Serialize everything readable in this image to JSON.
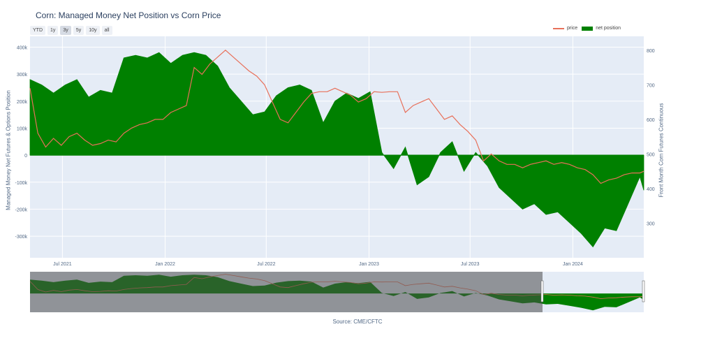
{
  "title": "Corn: Managed Money Net Position vs Corn Price",
  "range_buttons": [
    {
      "label": "YTD",
      "active": false
    },
    {
      "label": "1y",
      "active": false
    },
    {
      "label": "3y",
      "active": true
    },
    {
      "label": "5y",
      "active": false
    },
    {
      "label": "10y",
      "active": false
    },
    {
      "label": "all",
      "active": false
    }
  ],
  "legend": {
    "price": "price",
    "net_position": "net position"
  },
  "source": "Source: CME/CFTC",
  "colors": {
    "price": "#e8705a",
    "net_position": "#008000",
    "plot_bg": "#e5ecf6",
    "grid": "#ffffff"
  },
  "chart_data": {
    "type": "area",
    "title": "Corn: Managed Money Net Position vs Corn Price",
    "ylabel": "Managed Money Net Futures & Options Position",
    "y2label": "Front Month Corn Futures Continuous",
    "xlim": [
      "2021-05-04",
      "2024-05-07"
    ],
    "ylim": [
      -380000,
      440000
    ],
    "y2lim": [
      200000,
      840000
    ],
    "x_tick_labels": [
      "Jul 2021",
      "Jan 2022",
      "Jul 2022",
      "Jan 2023",
      "Jul 2023",
      "Jan 2024"
    ],
    "x_tick_dates": [
      "2021-07-01",
      "2022-01-01",
      "2022-07-01",
      "2023-01-01",
      "2023-07-01",
      "2024-01-01"
    ],
    "y_tick_labels": [
      "-300k",
      "-200k",
      "-100k",
      "0",
      "100k",
      "200k",
      "300k",
      "400k"
    ],
    "y_tick_values": [
      -300000,
      -200000,
      -100000,
      0,
      100000,
      200000,
      300000,
      400000
    ],
    "y2_tick_labels": [
      "300",
      "400",
      "500",
      "600",
      "700",
      "800"
    ],
    "y2_tick_values": [
      300,
      400,
      500,
      600,
      700,
      800
    ],
    "legend_position": "top-right",
    "grid": true,
    "series": [
      {
        "name": "net position",
        "axis": "left",
        "style": "filled-area",
        "x": [
          "2021-05-04",
          "2021-05-25",
          "2021-06-15",
          "2021-07-06",
          "2021-07-27",
          "2021-08-17",
          "2021-09-07",
          "2021-09-28",
          "2021-10-19",
          "2021-11-09",
          "2021-11-30",
          "2021-12-21",
          "2022-01-11",
          "2022-02-01",
          "2022-02-22",
          "2022-03-15",
          "2022-04-05",
          "2022-04-26",
          "2022-05-17",
          "2022-06-07",
          "2022-06-28",
          "2022-07-19",
          "2022-08-09",
          "2022-08-30",
          "2022-09-20",
          "2022-10-11",
          "2022-11-01",
          "2022-11-22",
          "2022-12-13",
          "2023-01-03",
          "2023-01-24",
          "2023-02-14",
          "2023-03-07",
          "2023-03-28",
          "2023-04-18",
          "2023-05-09",
          "2023-05-30",
          "2023-06-20",
          "2023-07-11",
          "2023-08-01",
          "2023-08-22",
          "2023-09-12",
          "2023-10-03",
          "2023-10-24",
          "2023-11-14",
          "2023-12-05",
          "2023-12-26",
          "2024-01-16",
          "2024-02-06",
          "2024-02-27",
          "2024-03-19",
          "2024-04-09",
          "2024-04-30",
          "2024-05-07"
        ],
        "y": [
          280000,
          260000,
          230000,
          260000,
          280000,
          215000,
          240000,
          230000,
          360000,
          370000,
          360000,
          380000,
          340000,
          370000,
          380000,
          370000,
          330000,
          250000,
          200000,
          150000,
          160000,
          220000,
          250000,
          260000,
          240000,
          120000,
          200000,
          230000,
          210000,
          235000,
          10000,
          -50000,
          30000,
          -110000,
          -80000,
          10000,
          50000,
          -60000,
          10000,
          -40000,
          -120000,
          -160000,
          -200000,
          -180000,
          -220000,
          -210000,
          -250000,
          -290000,
          -340000,
          -270000,
          -280000,
          -180000,
          -80000,
          -130000
        ]
      },
      {
        "name": "price",
        "axis": "right",
        "style": "line",
        "x": [
          "2021-05-04",
          "2021-05-18",
          "2021-06-01",
          "2021-06-15",
          "2021-06-29",
          "2021-07-13",
          "2021-07-27",
          "2021-08-10",
          "2021-08-24",
          "2021-09-07",
          "2021-09-21",
          "2021-10-05",
          "2021-10-19",
          "2021-11-02",
          "2021-11-16",
          "2021-11-30",
          "2021-12-14",
          "2021-12-28",
          "2022-01-11",
          "2022-01-25",
          "2022-02-08",
          "2022-02-22",
          "2022-03-08",
          "2022-03-22",
          "2022-04-05",
          "2022-04-19",
          "2022-05-03",
          "2022-05-17",
          "2022-05-31",
          "2022-06-14",
          "2022-06-28",
          "2022-07-12",
          "2022-07-26",
          "2022-08-09",
          "2022-08-23",
          "2022-09-06",
          "2022-09-20",
          "2022-10-04",
          "2022-10-18",
          "2022-11-01",
          "2022-11-15",
          "2022-11-29",
          "2022-12-13",
          "2022-12-27",
          "2023-01-10",
          "2023-01-24",
          "2023-02-07",
          "2023-02-21",
          "2023-03-07",
          "2023-03-21",
          "2023-04-04",
          "2023-04-18",
          "2023-05-02",
          "2023-05-16",
          "2023-05-30",
          "2023-06-13",
          "2023-06-27",
          "2023-07-11",
          "2023-07-25",
          "2023-08-08",
          "2023-08-22",
          "2023-09-05",
          "2023-09-19",
          "2023-10-03",
          "2023-10-17",
          "2023-10-31",
          "2023-11-14",
          "2023-11-28",
          "2023-12-12",
          "2023-12-26",
          "2024-01-09",
          "2024-01-23",
          "2024-02-06",
          "2024-02-20",
          "2024-03-05",
          "2024-03-19",
          "2024-04-02",
          "2024-04-16",
          "2024-04-30",
          "2024-05-07"
        ],
        "y": [
          690,
          560,
          520,
          545,
          525,
          550,
          560,
          540,
          525,
          530,
          540,
          535,
          560,
          575,
          585,
          590,
          600,
          600,
          620,
          630,
          640,
          750,
          730,
          760,
          780,
          800,
          780,
          760,
          740,
          725,
          700,
          650,
          600,
          590,
          620,
          650,
          675,
          680,
          680,
          690,
          680,
          670,
          650,
          660,
          680,
          678,
          680,
          680,
          620,
          640,
          650,
          660,
          630,
          600,
          610,
          585,
          565,
          540,
          480,
          500,
          480,
          470,
          470,
          460,
          470,
          475,
          480,
          470,
          475,
          470,
          460,
          455,
          440,
          415,
          425,
          430,
          440,
          445,
          445,
          450
        ]
      }
    ]
  },
  "navigator": {
    "selected_from": "2021-05-04",
    "selected_to": "2024-05-07"
  }
}
